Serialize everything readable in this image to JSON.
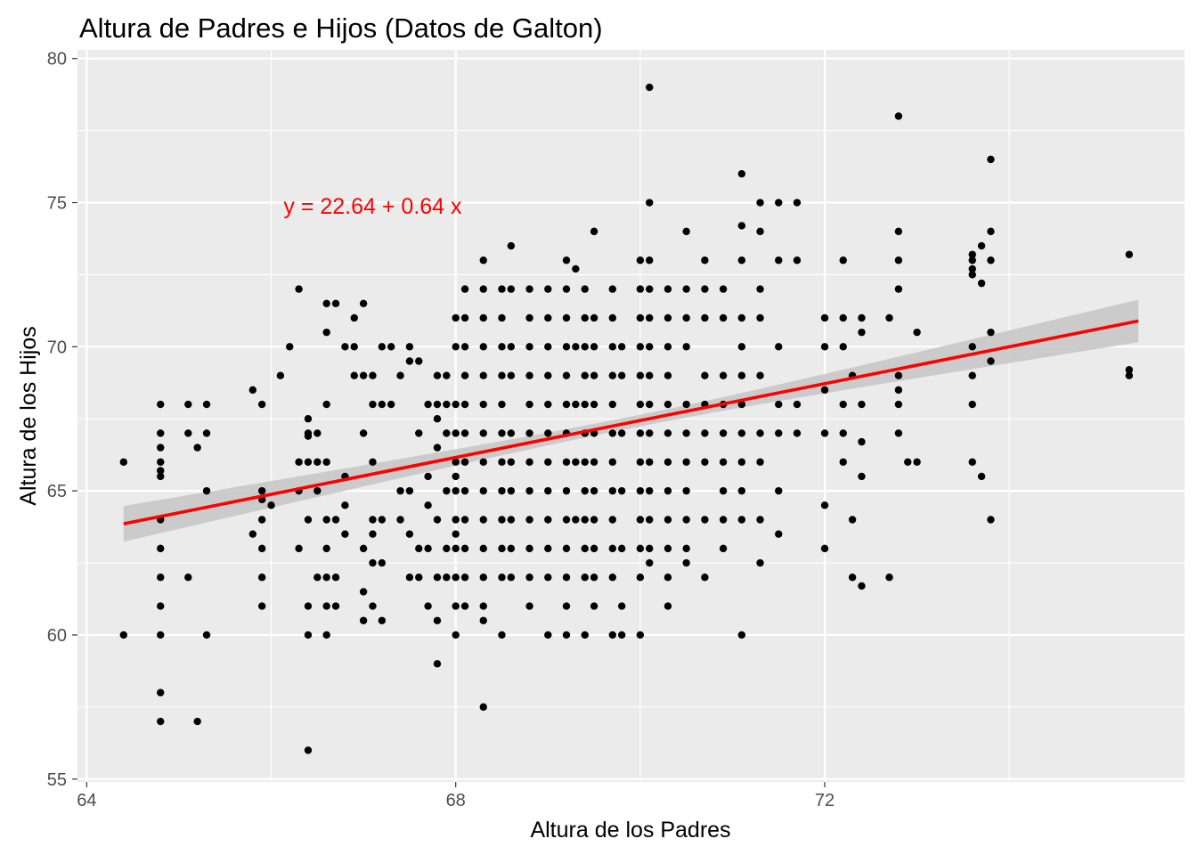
{
  "chart_data": {
    "type": "scatter",
    "title": "Altura de Padres e Hijos (Datos de Galton)",
    "xlabel": "Altura de los Padres",
    "ylabel": "Altura de los Hijos",
    "xlim": [
      63.9,
      75.9
    ],
    "ylim": [
      54.9,
      80.3
    ],
    "x_ticks": [
      64,
      68,
      72
    ],
    "y_ticks": [
      55,
      60,
      65,
      70,
      75,
      80
    ],
    "grid": true,
    "background_color": "#ebebeb",
    "grid_color": "#ffffff",
    "point_color": "#000000",
    "fit_color": "#ff0000",
    "band_color": "#c8c8c8",
    "annotation": {
      "text": "y = 22.64 + 0.64 x",
      "x": 67.1,
      "y": 74.9,
      "color": "#ff0000"
    },
    "regression": {
      "intercept": 22.64,
      "slope": 0.64,
      "x_range": [
        64.4,
        75.4
      ],
      "ci_halfwidth_ends": [
        0.62,
        0.74
      ],
      "ci_halfwidth_center": 0.2
    },
    "points": [
      [
        64.4,
        66
      ],
      [
        64.4,
        60
      ],
      [
        64.8,
        68
      ],
      [
        64.8,
        67
      ],
      [
        64.8,
        66.5
      ],
      [
        64.8,
        66
      ],
      [
        64.8,
        65.7
      ],
      [
        64.8,
        65.5
      ],
      [
        64.8,
        64
      ],
      [
        64.8,
        63
      ],
      [
        64.8,
        62
      ],
      [
        64.8,
        61
      ],
      [
        64.8,
        60
      ],
      [
        64.8,
        58
      ],
      [
        64.8,
        57
      ],
      [
        65.1,
        68
      ],
      [
        65.1,
        67
      ],
      [
        65.1,
        62
      ],
      [
        65.2,
        57
      ],
      [
        65.2,
        66.5
      ],
      [
        65.3,
        68
      ],
      [
        65.3,
        67
      ],
      [
        65.3,
        65
      ],
      [
        65.3,
        60
      ],
      [
        65.8,
        68.5
      ],
      [
        65.8,
        63.5
      ],
      [
        65.9,
        68
      ],
      [
        65.9,
        65
      ],
      [
        65.9,
        64.7
      ],
      [
        65.9,
        64
      ],
      [
        65.9,
        63
      ],
      [
        65.9,
        62
      ],
      [
        65.9,
        61
      ],
      [
        66.0,
        64.5
      ],
      [
        66.1,
        69
      ],
      [
        66.2,
        70
      ],
      [
        66.3,
        72
      ],
      [
        66.3,
        65
      ],
      [
        66.3,
        66
      ],
      [
        66.3,
        63
      ],
      [
        66.4,
        67.5
      ],
      [
        66.4,
        67
      ],
      [
        66.4,
        66.9
      ],
      [
        66.4,
        66
      ],
      [
        66.4,
        64
      ],
      [
        66.4,
        61
      ],
      [
        66.4,
        60
      ],
      [
        66.4,
        56
      ],
      [
        66.5,
        67
      ],
      [
        66.5,
        66
      ],
      [
        66.5,
        65
      ],
      [
        66.5,
        62
      ],
      [
        66.6,
        71.5
      ],
      [
        66.6,
        70.5
      ],
      [
        66.6,
        68
      ],
      [
        66.6,
        66
      ],
      [
        66.6,
        64
      ],
      [
        66.6,
        63
      ],
      [
        66.6,
        62
      ],
      [
        66.6,
        61
      ],
      [
        66.6,
        60
      ],
      [
        66.7,
        71.5
      ],
      [
        66.7,
        64
      ],
      [
        66.7,
        61
      ],
      [
        66.7,
        62
      ],
      [
        66.8,
        70
      ],
      [
        66.8,
        65.5
      ],
      [
        66.8,
        64.5
      ],
      [
        66.8,
        63.5
      ],
      [
        66.9,
        71
      ],
      [
        66.9,
        69
      ],
      [
        66.9,
        70
      ],
      [
        67.0,
        71.5
      ],
      [
        67.0,
        69
      ],
      [
        67.0,
        67
      ],
      [
        67.0,
        63
      ],
      [
        67.0,
        61.5
      ],
      [
        67.0,
        60.5
      ],
      [
        67.1,
        69
      ],
      [
        67.1,
        68
      ],
      [
        67.1,
        66
      ],
      [
        67.1,
        64
      ],
      [
        67.1,
        63.5
      ],
      [
        67.1,
        62.5
      ],
      [
        67.1,
        61
      ],
      [
        67.2,
        70
      ],
      [
        67.2,
        68
      ],
      [
        67.2,
        64
      ],
      [
        67.2,
        62.5
      ],
      [
        67.2,
        60.5
      ],
      [
        67.3,
        70
      ],
      [
        67.3,
        68
      ],
      [
        67.4,
        69
      ],
      [
        67.4,
        65
      ],
      [
        67.4,
        64
      ],
      [
        67.5,
        69.5
      ],
      [
        67.5,
        70
      ],
      [
        67.5,
        65
      ],
      [
        67.5,
        63.5
      ],
      [
        67.5,
        62
      ],
      [
        67.6,
        69.5
      ],
      [
        67.6,
        67
      ],
      [
        67.6,
        63
      ],
      [
        67.6,
        62
      ],
      [
        67.7,
        68
      ],
      [
        67.7,
        65.5
      ],
      [
        67.7,
        64.5
      ],
      [
        67.7,
        63
      ],
      [
        67.7,
        61
      ],
      [
        67.8,
        69
      ],
      [
        67.8,
        68
      ],
      [
        67.8,
        67.5
      ],
      [
        67.8,
        66.5
      ],
      [
        67.8,
        64
      ],
      [
        67.8,
        62
      ],
      [
        67.8,
        60.5
      ],
      [
        67.8,
        59
      ],
      [
        67.9,
        69
      ],
      [
        67.9,
        68
      ],
      [
        67.9,
        67
      ],
      [
        67.9,
        65
      ],
      [
        67.9,
        63
      ],
      [
        67.9,
        62
      ],
      [
        68.0,
        71
      ],
      [
        68.0,
        70
      ],
      [
        68.0,
        68
      ],
      [
        68.0,
        67
      ],
      [
        68.0,
        66
      ],
      [
        68.0,
        65.5
      ],
      [
        68.0,
        65
      ],
      [
        68.0,
        64
      ],
      [
        68.0,
        63.5
      ],
      [
        68.0,
        63
      ],
      [
        68.0,
        62
      ],
      [
        68.0,
        61
      ],
      [
        68.0,
        60
      ],
      [
        68.1,
        72
      ],
      [
        68.1,
        71
      ],
      [
        68.1,
        70
      ],
      [
        68.1,
        69
      ],
      [
        68.1,
        68
      ],
      [
        68.1,
        67
      ],
      [
        68.1,
        66
      ],
      [
        68.1,
        65
      ],
      [
        68.1,
        64
      ],
      [
        68.1,
        63
      ],
      [
        68.1,
        62
      ],
      [
        68.1,
        61
      ],
      [
        68.3,
        73
      ],
      [
        68.3,
        72
      ],
      [
        68.3,
        71
      ],
      [
        68.3,
        70
      ],
      [
        68.3,
        69
      ],
      [
        68.3,
        68
      ],
      [
        68.3,
        67
      ],
      [
        68.3,
        66
      ],
      [
        68.3,
        65
      ],
      [
        68.3,
        64
      ],
      [
        68.3,
        63
      ],
      [
        68.3,
        62
      ],
      [
        68.3,
        61
      ],
      [
        68.3,
        60.5
      ],
      [
        68.3,
        57.5
      ],
      [
        68.5,
        72
      ],
      [
        68.5,
        71
      ],
      [
        68.5,
        70
      ],
      [
        68.5,
        69
      ],
      [
        68.5,
        68
      ],
      [
        68.5,
        67
      ],
      [
        68.5,
        66
      ],
      [
        68.5,
        65
      ],
      [
        68.5,
        64
      ],
      [
        68.5,
        63
      ],
      [
        68.5,
        62
      ],
      [
        68.5,
        60
      ],
      [
        68.6,
        73.5
      ],
      [
        68.6,
        72
      ],
      [
        68.6,
        70
      ],
      [
        68.6,
        69
      ],
      [
        68.6,
        67
      ],
      [
        68.6,
        66
      ],
      [
        68.6,
        65
      ],
      [
        68.6,
        64
      ],
      [
        68.6,
        63
      ],
      [
        68.6,
        62
      ],
      [
        68.8,
        72
      ],
      [
        68.8,
        71
      ],
      [
        68.8,
        70
      ],
      [
        68.8,
        69
      ],
      [
        68.8,
        68
      ],
      [
        68.8,
        67
      ],
      [
        68.8,
        66
      ],
      [
        68.8,
        65
      ],
      [
        68.8,
        64
      ],
      [
        68.8,
        63
      ],
      [
        68.8,
        62
      ],
      [
        68.8,
        61
      ],
      [
        69.0,
        72
      ],
      [
        69.0,
        71
      ],
      [
        69.0,
        70
      ],
      [
        69.0,
        69
      ],
      [
        69.0,
        68
      ],
      [
        69.0,
        67
      ],
      [
        69.0,
        66
      ],
      [
        69.0,
        65
      ],
      [
        69.0,
        64
      ],
      [
        69.0,
        63
      ],
      [
        69.0,
        62
      ],
      [
        69.0,
        60
      ],
      [
        69.2,
        73
      ],
      [
        69.2,
        72
      ],
      [
        69.2,
        71
      ],
      [
        69.2,
        70
      ],
      [
        69.2,
        69
      ],
      [
        69.2,
        68
      ],
      [
        69.2,
        67
      ],
      [
        69.2,
        66
      ],
      [
        69.2,
        65
      ],
      [
        69.2,
        64
      ],
      [
        69.2,
        63
      ],
      [
        69.2,
        62
      ],
      [
        69.2,
        61
      ],
      [
        69.2,
        60
      ],
      [
        69.3,
        72.7
      ],
      [
        69.3,
        70
      ],
      [
        69.3,
        68
      ],
      [
        69.3,
        66
      ],
      [
        69.3,
        64
      ],
      [
        69.4,
        72
      ],
      [
        69.4,
        71
      ],
      [
        69.4,
        70
      ],
      [
        69.4,
        69
      ],
      [
        69.4,
        68
      ],
      [
        69.4,
        67
      ],
      [
        69.4,
        66
      ],
      [
        69.4,
        65
      ],
      [
        69.4,
        64
      ],
      [
        69.4,
        63
      ],
      [
        69.4,
        62
      ],
      [
        69.4,
        60
      ],
      [
        69.5,
        74
      ],
      [
        69.5,
        71
      ],
      [
        69.5,
        70
      ],
      [
        69.5,
        69
      ],
      [
        69.5,
        68
      ],
      [
        69.5,
        67
      ],
      [
        69.5,
        66
      ],
      [
        69.5,
        65
      ],
      [
        69.5,
        64
      ],
      [
        69.5,
        63
      ],
      [
        69.5,
        62
      ],
      [
        69.5,
        61
      ],
      [
        69.7,
        72
      ],
      [
        69.7,
        71
      ],
      [
        69.7,
        70
      ],
      [
        69.7,
        69
      ],
      [
        69.7,
        68
      ],
      [
        69.7,
        67
      ],
      [
        69.7,
        66
      ],
      [
        69.7,
        65
      ],
      [
        69.7,
        64
      ],
      [
        69.7,
        63
      ],
      [
        69.7,
        62
      ],
      [
        69.7,
        60
      ],
      [
        69.8,
        70
      ],
      [
        69.8,
        69
      ],
      [
        69.8,
        67
      ],
      [
        69.8,
        65
      ],
      [
        69.8,
        63
      ],
      [
        69.8,
        61
      ],
      [
        69.8,
        60
      ],
      [
        70.0,
        73
      ],
      [
        70.0,
        72
      ],
      [
        70.0,
        71
      ],
      [
        70.0,
        70
      ],
      [
        70.0,
        69
      ],
      [
        70.0,
        68
      ],
      [
        70.0,
        67
      ],
      [
        70.0,
        66
      ],
      [
        70.0,
        65
      ],
      [
        70.0,
        64
      ],
      [
        70.0,
        63
      ],
      [
        70.0,
        62
      ],
      [
        70.0,
        60
      ],
      [
        70.1,
        79
      ],
      [
        70.1,
        75
      ],
      [
        70.1,
        73
      ],
      [
        70.1,
        72
      ],
      [
        70.1,
        71
      ],
      [
        70.1,
        70
      ],
      [
        70.1,
        69
      ],
      [
        70.1,
        68
      ],
      [
        70.1,
        67
      ],
      [
        70.1,
        66
      ],
      [
        70.1,
        65
      ],
      [
        70.1,
        64
      ],
      [
        70.1,
        63
      ],
      [
        70.1,
        62.5
      ],
      [
        70.3,
        72
      ],
      [
        70.3,
        71
      ],
      [
        70.3,
        70
      ],
      [
        70.3,
        69
      ],
      [
        70.3,
        68
      ],
      [
        70.3,
        67
      ],
      [
        70.3,
        66
      ],
      [
        70.3,
        65
      ],
      [
        70.3,
        64
      ],
      [
        70.3,
        63
      ],
      [
        70.3,
        62
      ],
      [
        70.3,
        61
      ],
      [
        70.5,
        74
      ],
      [
        70.5,
        72
      ],
      [
        70.5,
        71
      ],
      [
        70.5,
        70
      ],
      [
        70.5,
        68
      ],
      [
        70.5,
        67
      ],
      [
        70.5,
        66
      ],
      [
        70.5,
        65
      ],
      [
        70.5,
        64
      ],
      [
        70.5,
        63
      ],
      [
        70.5,
        62.5
      ],
      [
        70.7,
        73
      ],
      [
        70.7,
        72
      ],
      [
        70.7,
        71
      ],
      [
        70.7,
        69
      ],
      [
        70.7,
        68
      ],
      [
        70.7,
        67
      ],
      [
        70.7,
        66
      ],
      [
        70.7,
        64
      ],
      [
        70.7,
        62
      ],
      [
        70.9,
        72
      ],
      [
        70.9,
        71
      ],
      [
        70.9,
        69
      ],
      [
        70.9,
        68
      ],
      [
        70.9,
        67
      ],
      [
        70.9,
        66
      ],
      [
        70.9,
        65
      ],
      [
        70.9,
        64
      ],
      [
        70.9,
        63
      ],
      [
        71.1,
        76
      ],
      [
        71.1,
        74.2
      ],
      [
        71.1,
        73
      ],
      [
        71.1,
        71
      ],
      [
        71.1,
        70
      ],
      [
        71.1,
        69
      ],
      [
        71.1,
        68
      ],
      [
        71.1,
        67
      ],
      [
        71.1,
        66
      ],
      [
        71.1,
        65
      ],
      [
        71.1,
        64
      ],
      [
        71.1,
        60
      ],
      [
        71.3,
        75
      ],
      [
        71.3,
        74
      ],
      [
        71.3,
        72
      ],
      [
        71.3,
        71
      ],
      [
        71.3,
        69
      ],
      [
        71.3,
        67
      ],
      [
        71.3,
        66
      ],
      [
        71.3,
        64
      ],
      [
        71.3,
        62.5
      ],
      [
        71.5,
        75
      ],
      [
        71.5,
        73
      ],
      [
        71.5,
        70
      ],
      [
        71.5,
        68
      ],
      [
        71.5,
        67
      ],
      [
        71.5,
        65
      ],
      [
        71.5,
        63.5
      ],
      [
        71.7,
        75
      ],
      [
        71.7,
        73
      ],
      [
        71.7,
        68
      ],
      [
        71.7,
        67
      ],
      [
        72.0,
        71
      ],
      [
        72.0,
        70
      ],
      [
        72.0,
        68.5
      ],
      [
        72.0,
        67
      ],
      [
        72.0,
        64.5
      ],
      [
        72.0,
        63
      ],
      [
        72.2,
        73
      ],
      [
        72.2,
        71
      ],
      [
        72.2,
        70
      ],
      [
        72.2,
        68
      ],
      [
        72.2,
        67
      ],
      [
        72.2,
        66
      ],
      [
        72.3,
        69
      ],
      [
        72.3,
        64
      ],
      [
        72.3,
        62
      ],
      [
        72.4,
        71
      ],
      [
        72.4,
        70.5
      ],
      [
        72.4,
        68
      ],
      [
        72.4,
        66.7
      ],
      [
        72.4,
        65.5
      ],
      [
        72.4,
        61.7
      ],
      [
        72.7,
        71
      ],
      [
        72.7,
        62
      ],
      [
        72.8,
        78
      ],
      [
        72.8,
        74
      ],
      [
        72.8,
        73
      ],
      [
        72.8,
        72
      ],
      [
        72.8,
        69
      ],
      [
        72.8,
        68.5
      ],
      [
        72.8,
        68
      ],
      [
        72.8,
        67
      ],
      [
        72.9,
        66
      ],
      [
        73.0,
        70.5
      ],
      [
        73.0,
        66
      ],
      [
        73.6,
        73.2
      ],
      [
        73.6,
        73
      ],
      [
        73.6,
        72.7
      ],
      [
        73.6,
        72.5
      ],
      [
        73.6,
        70
      ],
      [
        73.6,
        69
      ],
      [
        73.6,
        68
      ],
      [
        73.6,
        66
      ],
      [
        73.7,
        73.5
      ],
      [
        73.7,
        72.2
      ],
      [
        73.7,
        65.5
      ],
      [
        73.8,
        76.5
      ],
      [
        73.8,
        74
      ],
      [
        73.8,
        73
      ],
      [
        73.8,
        70.5
      ],
      [
        73.8,
        69.5
      ],
      [
        73.8,
        64
      ],
      [
        75.3,
        73.2
      ],
      [
        75.3,
        69.2
      ],
      [
        75.3,
        69
      ]
    ]
  }
}
